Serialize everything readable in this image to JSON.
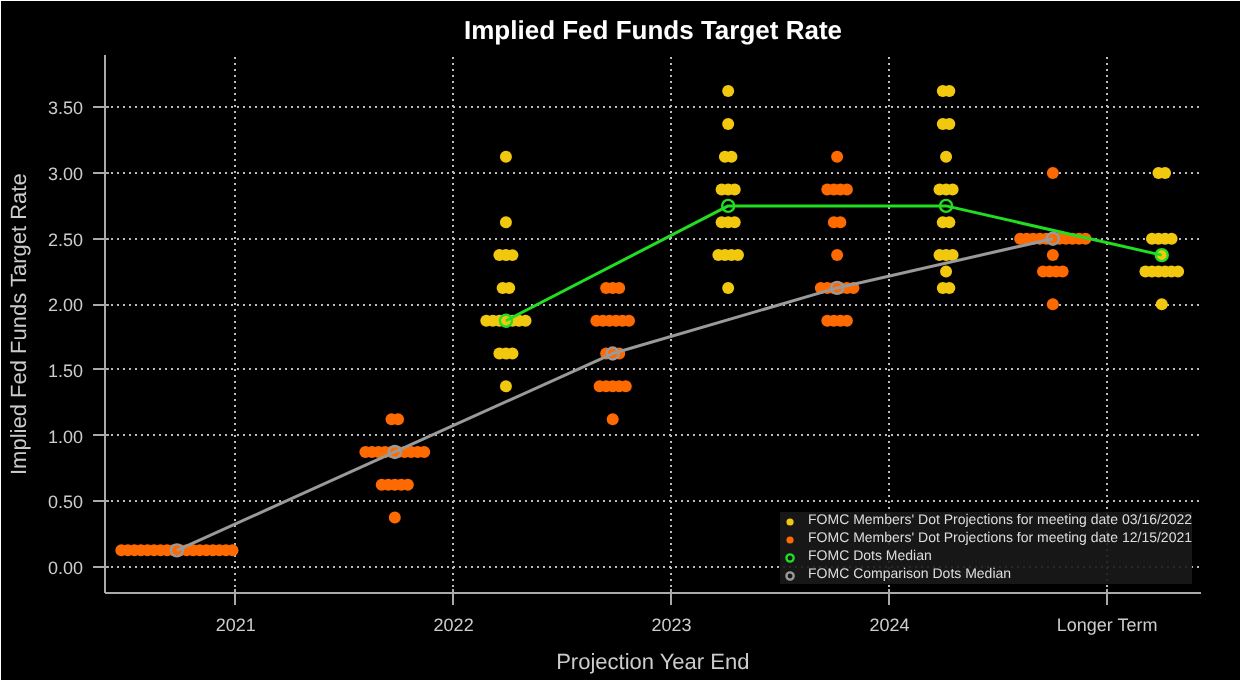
{
  "chart_data": {
    "type": "scatter",
    "title": "Implied Fed Funds Target Rate",
    "xlabel": "Projection Year End",
    "ylabel": "Implied Fed Funds Target Rate",
    "xlim": [
      2020.4,
      2025.43
    ],
    "ylim": [
      -0.2,
      3.9
    ],
    "xticks": [
      2021,
      2022,
      2023,
      2024,
      {
        "value": 2025,
        "label": "Longer Term"
      }
    ],
    "yticks": [
      {
        "value": 0,
        "label": "0.00"
      },
      {
        "value": 0.5,
        "label": "0.50"
      },
      {
        "value": 1,
        "label": "1.00"
      },
      {
        "value": 1.5,
        "label": "1.50"
      },
      {
        "value": 2,
        "label": "2.00"
      },
      {
        "value": 2.5,
        "label": "2.50"
      },
      {
        "value": 3,
        "label": "3.00"
      },
      {
        "value": 3.5,
        "label": "3.50"
      }
    ],
    "grid": true,
    "legend": "bottom right",
    "marker": "circle",
    "series": [
      {
        "name": "FOMC Members' Dot Projections for meeting date 03/16/2022",
        "color": "#f2c80f",
        "x": [
          2022.24,
          2022.24,
          2022.21,
          2022.24,
          2022.27,
          2022.225,
          2022.255,
          2022.15,
          2022.18,
          2022.21,
          2022.24,
          2022.27,
          2022.3,
          2022.33,
          2022.21,
          2022.24,
          2022.27,
          2022.24,
          2023.26,
          2023.26,
          2023.245,
          2023.275,
          2023.23,
          2023.26,
          2023.29,
          2023.23,
          2023.26,
          2023.29,
          2023.215,
          2023.245,
          2023.275,
          2023.305,
          2023.26,
          2024.245,
          2024.275,
          2024.245,
          2024.275,
          2024.26,
          2024.23,
          2024.26,
          2024.29,
          2024.245,
          2024.275,
          2024.23,
          2024.26,
          2024.29,
          2024.26,
          2024.245,
          2024.275,
          2025.235,
          2025.265,
          2025.205,
          2025.235,
          2025.265,
          2025.295,
          2025.25,
          2025.175,
          2025.205,
          2025.235,
          2025.265,
          2025.295,
          2025.325,
          2025.25
        ],
        "values": [
          3.125,
          2.625,
          2.375,
          2.375,
          2.375,
          2.125,
          2.125,
          1.875,
          1.875,
          1.875,
          1.875,
          1.875,
          1.875,
          1.875,
          1.625,
          1.625,
          1.625,
          1.375,
          3.625,
          3.375,
          3.125,
          3.125,
          2.875,
          2.875,
          2.875,
          2.625,
          2.625,
          2.625,
          2.375,
          2.375,
          2.375,
          2.375,
          2.125,
          3.625,
          3.625,
          3.375,
          3.375,
          3.125,
          2.875,
          2.875,
          2.875,
          2.625,
          2.625,
          2.375,
          2.375,
          2.375,
          2.25,
          2.125,
          2.125,
          3.0,
          3.0,
          2.5,
          2.5,
          2.5,
          2.5,
          2.375,
          2.25,
          2.25,
          2.25,
          2.25,
          2.25,
          2.25,
          2.0
        ]
      },
      {
        "name": "FOMC Members' Dot Projections for meeting date 12/15/2021",
        "color": "#ff6a00",
        "x": [
          2020.475,
          2020.505,
          2020.535,
          2020.565,
          2020.595,
          2020.625,
          2020.655,
          2020.685,
          2020.715,
          2020.745,
          2020.775,
          2020.805,
          2020.835,
          2020.865,
          2020.895,
          2020.925,
          2020.955,
          2020.985,
          2021.715,
          2021.745,
          2021.595,
          2021.625,
          2021.655,
          2021.685,
          2021.715,
          2021.745,
          2021.775,
          2021.805,
          2021.835,
          2021.865,
          2021.67,
          2021.7,
          2021.73,
          2021.76,
          2021.79,
          2021.73,
          2022.7,
          2022.73,
          2022.76,
          2022.655,
          2022.685,
          2022.715,
          2022.745,
          2022.775,
          2022.805,
          2022.7,
          2022.73,
          2022.76,
          2022.67,
          2022.7,
          2022.73,
          2022.76,
          2022.79,
          2022.73,
          2023.76,
          2023.715,
          2023.745,
          2023.775,
          2023.805,
          2023.745,
          2023.775,
          2023.76,
          2023.685,
          2023.715,
          2023.745,
          2023.775,
          2023.805,
          2023.835,
          2023.715,
          2023.745,
          2023.775,
          2023.805,
          2024.75,
          2024.6,
          2024.63,
          2024.66,
          2024.69,
          2024.72,
          2024.75,
          2024.78,
          2024.81,
          2024.84,
          2024.87,
          2024.9,
          2024.75,
          2024.705,
          2024.735,
          2024.765,
          2024.795,
          2024.75
        ],
        "values": [
          0.125,
          0.125,
          0.125,
          0.125,
          0.125,
          0.125,
          0.125,
          0.125,
          0.125,
          0.125,
          0.125,
          0.125,
          0.125,
          0.125,
          0.125,
          0.125,
          0.125,
          0.125,
          1.125,
          1.125,
          0.875,
          0.875,
          0.875,
          0.875,
          0.875,
          0.875,
          0.875,
          0.875,
          0.875,
          0.875,
          0.625,
          0.625,
          0.625,
          0.625,
          0.625,
          0.375,
          2.125,
          2.125,
          2.125,
          1.875,
          1.875,
          1.875,
          1.875,
          1.875,
          1.875,
          1.625,
          1.625,
          1.625,
          1.375,
          1.375,
          1.375,
          1.375,
          1.375,
          1.125,
          3.125,
          2.875,
          2.875,
          2.875,
          2.875,
          2.625,
          2.625,
          2.375,
          2.125,
          2.125,
          2.125,
          2.125,
          2.125,
          2.125,
          1.875,
          1.875,
          1.875,
          1.875,
          3.0,
          2.5,
          2.5,
          2.5,
          2.5,
          2.5,
          2.5,
          2.5,
          2.5,
          2.5,
          2.5,
          2.5,
          2.375,
          2.25,
          2.25,
          2.25,
          2.25,
          2.0
        ]
      },
      {
        "name": "FOMC Dots Median",
        "type": "line",
        "color": "#22dd22",
        "x": [
          2022.24,
          2023.26,
          2024.26,
          2025.25
        ],
        "values": [
          1.875,
          2.75,
          2.75,
          2.375
        ]
      },
      {
        "name": "FOMC Comparison Dots Median",
        "type": "line",
        "color": "#9a9a9a",
        "x": [
          2020.73,
          2021.73,
          2022.73,
          2023.76,
          2024.75
        ],
        "values": [
          0.125,
          0.875,
          1.625,
          2.125,
          2.5
        ]
      }
    ]
  }
}
